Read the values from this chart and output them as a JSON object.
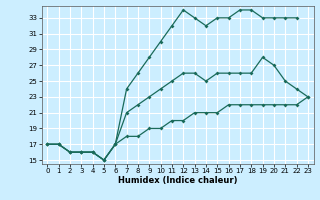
{
  "xlabel": "Humidex (Indice chaleur)",
  "bg_color": "#cceeff",
  "grid_color": "#ffffff",
  "line_color": "#1a6b5a",
  "xlim": [
    -0.5,
    23.5
  ],
  "ylim": [
    14.5,
    34.5
  ],
  "xticks": [
    0,
    1,
    2,
    3,
    4,
    5,
    6,
    7,
    8,
    9,
    10,
    11,
    12,
    13,
    14,
    15,
    16,
    17,
    18,
    19,
    20,
    21,
    22,
    23
  ],
  "yticks": [
    15,
    17,
    19,
    21,
    23,
    25,
    27,
    29,
    31,
    33
  ],
  "lines": [
    {
      "x": [
        0,
        1,
        2,
        3,
        4,
        5,
        6,
        7,
        8,
        9,
        10,
        11,
        12,
        13,
        14,
        15,
        16,
        17,
        18,
        19,
        20,
        21,
        22
      ],
      "y": [
        17,
        17,
        16,
        16,
        16,
        15,
        17,
        24,
        26,
        28,
        30,
        32,
        34,
        33,
        32,
        33,
        33,
        34,
        34,
        33,
        33,
        33,
        33
      ]
    },
    {
      "x": [
        0,
        1,
        2,
        3,
        4,
        5,
        6,
        7,
        8,
        9,
        10,
        11,
        12,
        13,
        14,
        15,
        16,
        17,
        18,
        19,
        20,
        21,
        22,
        23
      ],
      "y": [
        17,
        17,
        16,
        16,
        16,
        15,
        17,
        21,
        22,
        23,
        24,
        25,
        26,
        26,
        25,
        26,
        26,
        26,
        26,
        28,
        27,
        25,
        24,
        23
      ]
    },
    {
      "x": [
        0,
        1,
        2,
        3,
        4,
        5,
        6,
        7,
        8,
        9,
        10,
        11,
        12,
        13,
        14,
        15,
        16,
        17,
        18,
        19,
        20,
        21,
        22,
        23
      ],
      "y": [
        17,
        17,
        16,
        16,
        16,
        15,
        17,
        18,
        18,
        19,
        19,
        20,
        20,
        21,
        21,
        21,
        22,
        22,
        22,
        22,
        22,
        22,
        22,
        23
      ]
    }
  ]
}
